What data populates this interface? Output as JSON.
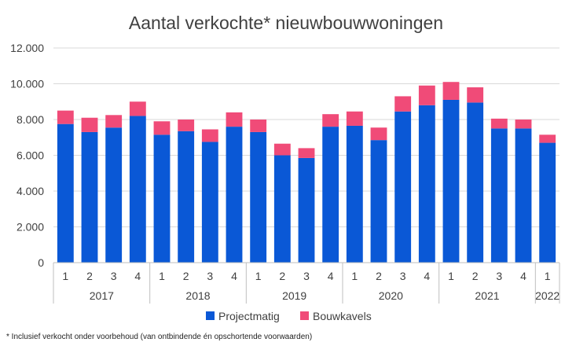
{
  "chart_data": {
    "type": "bar",
    "stacked": true,
    "title": "Aantal verkochte* nieuwbouwwoningen",
    "xlabel": "",
    "ylabel": "",
    "ylim": [
      0,
      12000
    ],
    "yticks": [
      "0",
      "2.000",
      "4.000",
      "6.000",
      "8.000",
      "10.000",
      "12.000"
    ],
    "grid": true,
    "legend_position": "bottom",
    "categories": [
      "1",
      "2",
      "3",
      "4",
      "1",
      "2",
      "3",
      "4",
      "1",
      "2",
      "3",
      "4",
      "1",
      "2",
      "3",
      "4",
      "1",
      "2",
      "3",
      "4",
      "1"
    ],
    "groups": [
      {
        "label": "2017",
        "count": 4
      },
      {
        "label": "2018",
        "count": 4
      },
      {
        "label": "2019",
        "count": 4
      },
      {
        "label": "2020",
        "count": 4
      },
      {
        "label": "2021",
        "count": 4
      },
      {
        "label": "2022",
        "count": 1
      }
    ],
    "series": [
      {
        "name": "Projectmatig",
        "color": "#0a58d6",
        "values": [
          7750,
          7300,
          7550,
          8200,
          7150,
          7350,
          6750,
          7600,
          7300,
          6000,
          5850,
          7600,
          7650,
          6850,
          8450,
          8800,
          9100,
          8950,
          7500,
          7500,
          6700
        ]
      },
      {
        "name": "Bouwkavels",
        "color": "#f04b78",
        "values": [
          750,
          800,
          700,
          800,
          750,
          650,
          700,
          800,
          700,
          650,
          550,
          700,
          800,
          700,
          850,
          1100,
          1000,
          850,
          550,
          500,
          450
        ]
      }
    ],
    "footnote": "* Inclusief verkocht onder voorbehoud (van ontbindende én opschortende voorwaarden)"
  }
}
